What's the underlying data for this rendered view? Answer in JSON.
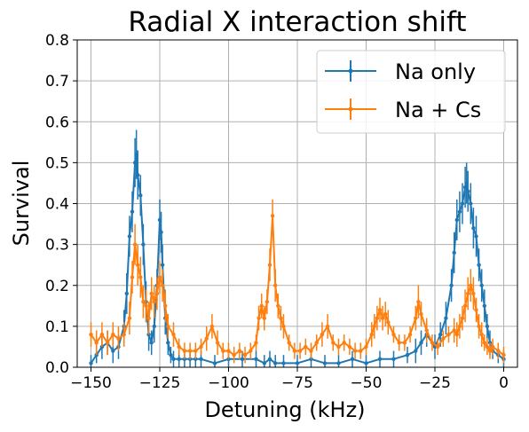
{
  "chart_data": {
    "type": "line",
    "title": "Radial X interaction shift",
    "xlabel": "Detuning (kHz)",
    "ylabel": "Survival",
    "xlim": [
      -155,
      5
    ],
    "ylim": [
      0,
      0.8
    ],
    "xticks": [
      -150,
      -125,
      -100,
      -75,
      -50,
      -25,
      0
    ],
    "yticks": [
      0.0,
      0.1,
      0.2,
      0.3,
      0.4,
      0.5,
      0.6,
      0.7,
      0.8
    ],
    "xtick_labels": [
      "−150",
      "−125",
      "−100",
      "−75",
      "−50",
      "−25",
      "0"
    ],
    "ytick_labels": [
      "0.0",
      "0.1",
      "0.2",
      "0.3",
      "0.4",
      "0.5",
      "0.6",
      "0.7",
      "0.8"
    ],
    "grid": true,
    "legend_position": "top-right",
    "error_bars": true,
    "series": [
      {
        "name": "Na only",
        "color": "#1f77b4",
        "x": [
          -150,
          -148,
          -146,
          -144,
          -142,
          -140,
          -138,
          -137,
          -136,
          -135,
          -134,
          -133.5,
          -133,
          -132,
          -131,
          -130,
          -129,
          -128,
          -127,
          -126,
          -125,
          -124.5,
          -124,
          -123,
          -122,
          -121,
          -120,
          -118,
          -116,
          -114,
          -112,
          -110,
          -105,
          -100,
          -95,
          -90,
          -87,
          -85,
          -83,
          -80,
          -75,
          -70,
          -65,
          -60,
          -55,
          -50,
          -45,
          -40,
          -35,
          -32,
          -30,
          -28,
          -25,
          -23,
          -21,
          -19,
          -18,
          -17,
          -16,
          -15,
          -14,
          -13.5,
          -13,
          -12,
          -11,
          -10,
          -9,
          -8,
          -7,
          -6,
          -5,
          -4,
          -2,
          0
        ],
        "values": [
          0.01,
          0.03,
          0.05,
          0.06,
          0.04,
          0.05,
          0.1,
          0.18,
          0.32,
          0.38,
          0.5,
          0.52,
          0.47,
          0.42,
          0.3,
          0.16,
          0.08,
          0.06,
          0.1,
          0.2,
          0.36,
          0.33,
          0.25,
          0.12,
          0.06,
          0.03,
          0.02,
          0.02,
          0.02,
          0.02,
          0.02,
          0.02,
          0.01,
          0.02,
          0.02,
          0.02,
          0.01,
          0.02,
          0.01,
          0.01,
          0.01,
          0.02,
          0.01,
          0.01,
          0.02,
          0.01,
          0.02,
          0.02,
          0.03,
          0.04,
          0.06,
          0.08,
          0.05,
          0.08,
          0.12,
          0.2,
          0.28,
          0.36,
          0.38,
          0.4,
          0.44,
          0.45,
          0.43,
          0.4,
          0.34,
          0.32,
          0.25,
          0.2,
          0.15,
          0.1,
          0.06,
          0.04,
          0.03,
          0.02
        ],
        "errors": [
          0.02,
          0.02,
          0.03,
          0.03,
          0.03,
          0.03,
          0.04,
          0.05,
          0.05,
          0.05,
          0.06,
          0.06,
          0.06,
          0.05,
          0.05,
          0.05,
          0.04,
          0.03,
          0.04,
          0.04,
          0.05,
          0.05,
          0.05,
          0.04,
          0.03,
          0.02,
          0.02,
          0.02,
          0.02,
          0.02,
          0.02,
          0.02,
          0.02,
          0.02,
          0.02,
          0.02,
          0.02,
          0.02,
          0.02,
          0.02,
          0.02,
          0.02,
          0.02,
          0.02,
          0.02,
          0.02,
          0.02,
          0.02,
          0.02,
          0.03,
          0.03,
          0.03,
          0.03,
          0.03,
          0.04,
          0.04,
          0.05,
          0.05,
          0.05,
          0.05,
          0.05,
          0.05,
          0.05,
          0.05,
          0.05,
          0.05,
          0.04,
          0.04,
          0.04,
          0.03,
          0.03,
          0.02,
          0.02,
          0.02
        ]
      },
      {
        "name": "Na + Cs",
        "color": "#ff7f0e",
        "x": [
          -150,
          -148,
          -146,
          -144,
          -142,
          -140,
          -138,
          -136,
          -135,
          -134,
          -133,
          -132,
          -131,
          -130,
          -129,
          -128,
          -127,
          -126,
          -125,
          -124,
          -123,
          -122,
          -120,
          -118,
          -116,
          -114,
          -112,
          -110,
          -108,
          -106,
          -104,
          -102,
          -100,
          -98,
          -96,
          -94,
          -92,
          -90,
          -89,
          -88,
          -87,
          -86,
          -85,
          -84,
          -83,
          -82,
          -81,
          -80,
          -78,
          -76,
          -74,
          -72,
          -70,
          -68,
          -66,
          -64,
          -62,
          -60,
          -58,
          -56,
          -54,
          -52,
          -50,
          -48,
          -47,
          -46,
          -45,
          -44,
          -43,
          -42,
          -40,
          -38,
          -36,
          -34,
          -32,
          -31,
          -30,
          -28,
          -26,
          -24,
          -22,
          -20,
          -18,
          -17,
          -16,
          -15,
          -14,
          -13,
          -12,
          -11,
          -10,
          -9,
          -8,
          -7,
          -6,
          -5,
          -4,
          -2,
          0
        ],
        "values": [
          0.08,
          0.06,
          0.08,
          0.06,
          0.08,
          0.07,
          0.08,
          0.12,
          0.22,
          0.3,
          0.25,
          0.22,
          0.16,
          0.15,
          0.12,
          0.18,
          0.16,
          0.18,
          0.22,
          0.2,
          0.15,
          0.1,
          0.08,
          0.05,
          0.04,
          0.04,
          0.04,
          0.05,
          0.07,
          0.1,
          0.06,
          0.04,
          0.04,
          0.03,
          0.04,
          0.03,
          0.04,
          0.06,
          0.12,
          0.15,
          0.12,
          0.16,
          0.25,
          0.37,
          0.2,
          0.15,
          0.12,
          0.1,
          0.06,
          0.04,
          0.04,
          0.05,
          0.04,
          0.06,
          0.08,
          0.1,
          0.06,
          0.05,
          0.06,
          0.05,
          0.04,
          0.04,
          0.05,
          0.08,
          0.1,
          0.12,
          0.14,
          0.12,
          0.13,
          0.11,
          0.08,
          0.06,
          0.06,
          0.08,
          0.12,
          0.16,
          0.13,
          0.09,
          0.06,
          0.05,
          0.07,
          0.08,
          0.09,
          0.08,
          0.1,
          0.12,
          0.15,
          0.18,
          0.2,
          0.18,
          0.14,
          0.1,
          0.08,
          0.06,
          0.05,
          0.04,
          0.05,
          0.04,
          0.03
        ],
        "errors": [
          0.03,
          0.03,
          0.03,
          0.03,
          0.03,
          0.03,
          0.03,
          0.04,
          0.04,
          0.05,
          0.05,
          0.05,
          0.04,
          0.04,
          0.04,
          0.04,
          0.04,
          0.04,
          0.04,
          0.04,
          0.04,
          0.03,
          0.03,
          0.02,
          0.02,
          0.02,
          0.02,
          0.02,
          0.03,
          0.03,
          0.03,
          0.02,
          0.02,
          0.02,
          0.02,
          0.02,
          0.02,
          0.02,
          0.03,
          0.03,
          0.03,
          0.03,
          0.04,
          0.04,
          0.04,
          0.03,
          0.03,
          0.03,
          0.02,
          0.02,
          0.02,
          0.02,
          0.02,
          0.02,
          0.03,
          0.03,
          0.02,
          0.02,
          0.02,
          0.02,
          0.02,
          0.02,
          0.02,
          0.03,
          0.03,
          0.03,
          0.03,
          0.03,
          0.03,
          0.03,
          0.02,
          0.02,
          0.02,
          0.02,
          0.03,
          0.04,
          0.03,
          0.03,
          0.02,
          0.02,
          0.02,
          0.02,
          0.03,
          0.03,
          0.03,
          0.03,
          0.04,
          0.04,
          0.04,
          0.04,
          0.03,
          0.03,
          0.03,
          0.02,
          0.02,
          0.02,
          0.02,
          0.02,
          0.02
        ]
      }
    ]
  }
}
